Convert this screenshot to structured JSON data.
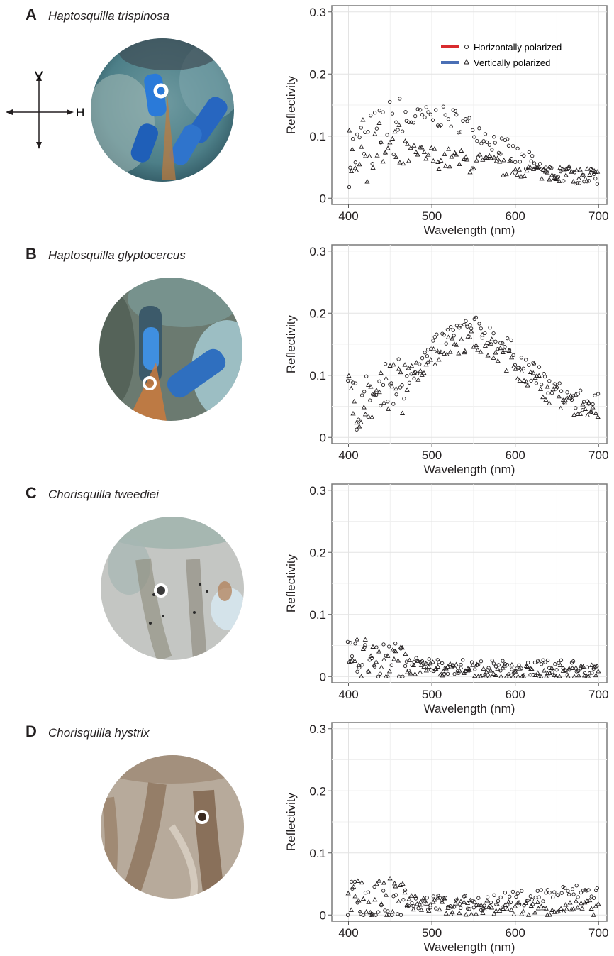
{
  "orientation": {
    "vertical_label": "V",
    "horizontal_label": "H"
  },
  "legend": {
    "entries": [
      {
        "label": "Horizontally polarized",
        "color": "#d92b2e",
        "marker": "circle"
      },
      {
        "label": "Vertically polarized",
        "color": "#4a6fb5",
        "marker": "triangle"
      }
    ]
  },
  "panels": [
    {
      "letter": "A",
      "species": "Haptosquilla trispinosa",
      "photo": {
        "base": "#5a8a92",
        "accent": "#2f7fd8",
        "ring_center": "#3a7fd0"
      }
    },
    {
      "letter": "B",
      "species": "Haptosquilla glyptocercus",
      "photo": {
        "base": "#6c7a6e",
        "accent": "#3b8fe0",
        "ring_center": "#5f9fc0"
      }
    },
    {
      "letter": "C",
      "species": "Chorisquilla tweediei",
      "photo": {
        "base": "#b9c2bd",
        "accent": "#7f8a7c",
        "ring_center": "#3a3a3a"
      }
    },
    {
      "letter": "D",
      "species": "Chorisquilla hystrix",
      "photo": {
        "base": "#b5aa9c",
        "accent": "#6b4a2e",
        "ring_center": "#3a2a20"
      }
    }
  ],
  "chart_data": [
    {
      "type": "scatter",
      "panel": "A",
      "xlabel": "Wavelength (nm)",
      "ylabel": "Reflectivity",
      "xlim": [
        380,
        710
      ],
      "ylim": [
        -0.01,
        0.31
      ],
      "xticks": [
        400,
        500,
        600,
        700
      ],
      "yticks": [
        0,
        0.1,
        0.2,
        0.3
      ],
      "ytick_labels": [
        "0",
        "0.1",
        "0.2",
        "0.3"
      ],
      "grid": true,
      "legend": "top-right",
      "series": [
        {
          "name": "Horizontally polarized",
          "color": "#d92b2e",
          "marker": "circle",
          "x": [
            400,
            425,
            450,
            475,
            500,
            525,
            550,
            575,
            600,
            625,
            650,
            675,
            700
          ],
          "y": [
            0.068,
            0.09,
            0.112,
            0.127,
            0.132,
            0.128,
            0.113,
            0.091,
            0.068,
            0.05,
            0.04,
            0.035,
            0.034
          ]
        },
        {
          "name": "Vertically polarized",
          "color": "#4a6fb5",
          "marker": "triangle",
          "x": [
            400,
            425,
            450,
            475,
            500,
            525,
            550,
            575,
            600,
            625,
            650,
            675,
            700
          ],
          "y": [
            0.078,
            0.076,
            0.073,
            0.07,
            0.066,
            0.062,
            0.057,
            0.052,
            0.047,
            0.043,
            0.04,
            0.038,
            0.037
          ]
        }
      ]
    },
    {
      "type": "scatter",
      "panel": "B",
      "xlabel": "Wavelength (nm)",
      "ylabel": "Reflectivity",
      "xlim": [
        380,
        710
      ],
      "ylim": [
        -0.01,
        0.31
      ],
      "xticks": [
        400,
        500,
        600,
        700
      ],
      "yticks": [
        0,
        0.1,
        0.2,
        0.3
      ],
      "ytick_labels": [
        "0",
        "0.1",
        "0.2",
        "0.3"
      ],
      "grid": true,
      "series": [
        {
          "name": "Horizontally polarized",
          "color": "#d92b2e",
          "marker": "circle",
          "x": [
            400,
            425,
            450,
            475,
            500,
            525,
            550,
            575,
            600,
            625,
            650,
            675,
            700
          ],
          "y": [
            0.055,
            0.063,
            0.078,
            0.105,
            0.14,
            0.17,
            0.178,
            0.163,
            0.133,
            0.1,
            0.073,
            0.058,
            0.055
          ]
        },
        {
          "name": "Vertically polarized",
          "color": "#4a6fb5",
          "marker": "triangle",
          "x": [
            400,
            425,
            450,
            475,
            500,
            525,
            550,
            575,
            600,
            625,
            650,
            675,
            700
          ],
          "y": [
            0.06,
            0.063,
            0.073,
            0.098,
            0.13,
            0.152,
            0.155,
            0.14,
            0.115,
            0.088,
            0.065,
            0.05,
            0.043
          ]
        }
      ]
    },
    {
      "type": "scatter",
      "panel": "C",
      "xlabel": "Wavelength (nm)",
      "ylabel": "Reflectivity",
      "xlim": [
        380,
        710
      ],
      "ylim": [
        -0.01,
        0.31
      ],
      "xticks": [
        400,
        500,
        600,
        700
      ],
      "yticks": [
        0,
        0.1,
        0.2,
        0.3
      ],
      "ytick_labels": [
        "0",
        "0.1",
        "0.2",
        "0.3"
      ],
      "grid": true,
      "series": [
        {
          "name": "Horizontally polarized",
          "color": "#d92b2e",
          "marker": "circle",
          "x": [
            400,
            425,
            450,
            475,
            500,
            525,
            550,
            575,
            600,
            625,
            650,
            675,
            700
          ],
          "y": [
            0.026,
            0.024,
            0.022,
            0.02,
            0.018,
            0.016,
            0.015,
            0.014,
            0.014,
            0.014,
            0.014,
            0.015,
            0.015
          ]
        },
        {
          "name": "Vertically polarized",
          "color": "#4a6fb5",
          "marker": "triangle",
          "x": [
            400,
            425,
            450,
            475,
            500,
            525,
            550,
            575,
            600,
            625,
            650,
            675,
            700
          ],
          "y": [
            0.028,
            0.025,
            0.021,
            0.017,
            0.013,
            0.01,
            0.008,
            0.007,
            0.006,
            0.006,
            0.006,
            0.006,
            0.006
          ]
        }
      ]
    },
    {
      "type": "scatter",
      "panel": "D",
      "xlabel": "Wavelength (nm)",
      "ylabel": "Reflectivity",
      "xlim": [
        380,
        710
      ],
      "ylim": [
        -0.01,
        0.31
      ],
      "xticks": [
        400,
        500,
        600,
        700
      ],
      "yticks": [
        0,
        0.1,
        0.2,
        0.3
      ],
      "ytick_labels": [
        "0",
        "0.1",
        "0.2",
        "0.3"
      ],
      "grid": true,
      "series": [
        {
          "name": "Horizontally polarized",
          "color": "#d92b2e",
          "marker": "circle",
          "x": [
            400,
            425,
            450,
            475,
            500,
            525,
            550,
            575,
            600,
            625,
            650,
            675,
            700
          ],
          "y": [
            0.02,
            0.023,
            0.024,
            0.022,
            0.02,
            0.018,
            0.019,
            0.022,
            0.026,
            0.031,
            0.035,
            0.037,
            0.036
          ]
        },
        {
          "name": "Vertically polarized",
          "color": "#4a6fb5",
          "marker": "triangle",
          "x": [
            400,
            425,
            450,
            475,
            500,
            525,
            550,
            575,
            600,
            625,
            650,
            675,
            700
          ],
          "y": [
            0.031,
            0.029,
            0.025,
            0.02,
            0.016,
            0.013,
            0.012,
            0.011,
            0.011,
            0.011,
            0.011,
            0.011,
            0.012
          ]
        }
      ]
    }
  ]
}
